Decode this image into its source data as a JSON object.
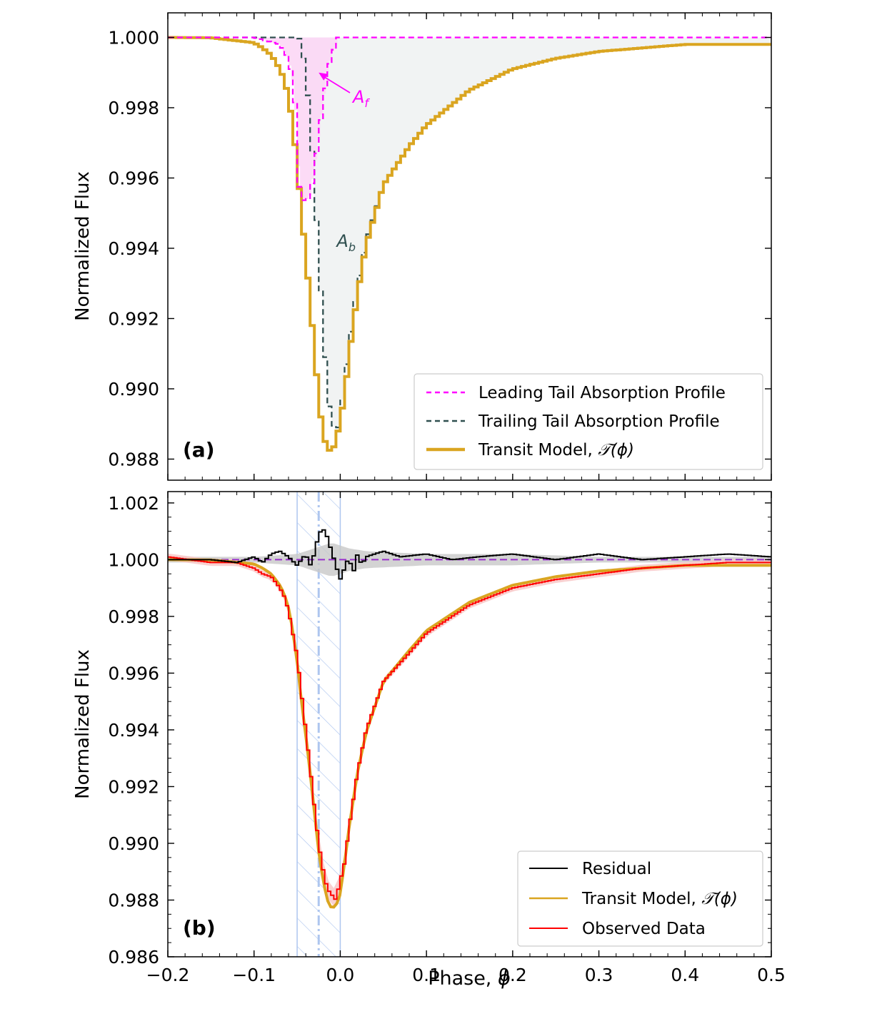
{
  "figure": {
    "x_label": "Phase, ",
    "x_label_symbol": "ϕ"
  },
  "chart_data": [
    {
      "type": "line",
      "panel_label": "(a)",
      "ylabel": "Normalized Flux",
      "xlim": [
        -0.2,
        0.5
      ],
      "ylim": [
        0.9874,
        1.0007
      ],
      "yticks": [
        0.988,
        0.99,
        0.992,
        0.994,
        0.996,
        0.998,
        1.0
      ],
      "ytick_labels": [
        "0.988",
        "0.990",
        "0.992",
        "0.994",
        "0.996",
        "0.998",
        "1.000"
      ],
      "legend_position": "lower-right",
      "annotations": [
        {
          "text": "A",
          "subscript": "f",
          "color": "#ff00ff",
          "points_to": [
            -0.025,
            0.999
          ]
        },
        {
          "text": "A",
          "subscript": "b",
          "color": "#2f4f4f",
          "at": [
            0.0,
            0.9942
          ]
        }
      ],
      "series": [
        {
          "name": "Leading Tail Absorption Profile",
          "style": "dashed",
          "color": "#ff00ff",
          "fill_color": "#fbd5f4",
          "x": [
            -0.2,
            -0.1,
            -0.07,
            -0.06,
            -0.055,
            -0.05,
            -0.047,
            -0.04,
            -0.035,
            -0.03,
            -0.025,
            -0.02,
            -0.015,
            -0.01,
            -0.005,
            -0.003,
            0.0,
            0.5
          ],
          "y": [
            1.0,
            1.0,
            0.9998,
            0.9994,
            0.9988,
            0.9975,
            0.9954,
            0.99535,
            0.9955,
            0.9962,
            0.9972,
            0.9981,
            0.999,
            0.9995,
            0.9998,
            1.0,
            1.0,
            1.0
          ]
        },
        {
          "name": "Trailing Tail Absorption Profile",
          "style": "dashed",
          "color": "#2f4f4f",
          "fill_color": "#f1f3f3",
          "x": [
            -0.2,
            -0.048,
            -0.045,
            -0.04,
            -0.035,
            -0.03,
            -0.025,
            -0.02,
            -0.015,
            -0.01,
            -0.005,
            -0.002,
            0.0,
            0.01,
            0.02,
            0.03,
            0.05,
            0.08,
            0.1,
            0.15,
            0.2,
            0.25,
            0.3,
            0.35,
            0.4,
            0.45,
            0.5
          ],
          "y": [
            1.0,
            1.0,
            0.9998,
            0.999,
            0.9977,
            0.9958,
            0.9938,
            0.9918,
            0.99,
            0.989,
            0.9889,
            0.9889,
            0.9892,
            0.9912,
            0.9929,
            0.9942,
            0.9958,
            0.9969,
            0.9975,
            0.9985,
            0.9991,
            0.9994,
            0.9996,
            0.9997,
            0.9998,
            0.9998,
            0.9998
          ]
        },
        {
          "name": "Transit Model, ",
          "name_symbol": "𝒯(ϕ)",
          "style": "solid",
          "color": "#daa520",
          "x": [
            -0.2,
            -0.15,
            -0.1,
            -0.09,
            -0.08,
            -0.07,
            -0.065,
            -0.06,
            -0.055,
            -0.05,
            -0.045,
            -0.04,
            -0.035,
            -0.03,
            -0.025,
            -0.02,
            -0.015,
            -0.01,
            -0.005,
            0.0,
            0.005,
            0.01,
            0.02,
            0.03,
            0.05,
            0.08,
            0.1,
            0.15,
            0.2,
            0.25,
            0.3,
            0.35,
            0.4,
            0.45,
            0.5
          ],
          "y": [
            1.0,
            0.99999,
            0.99985,
            0.9997,
            0.9995,
            0.9991,
            0.9988,
            0.9983,
            0.9975,
            0.9964,
            0.995,
            0.9938,
            0.9925,
            0.9911,
            0.9897,
            0.9887,
            0.9883,
            0.9882,
            0.9885,
            0.9891,
            0.9898,
            0.9909,
            0.9927,
            0.9941,
            0.9958,
            0.9969,
            0.9975,
            0.9985,
            0.9991,
            0.9994,
            0.9996,
            0.9997,
            0.9998,
            0.9998,
            0.9998
          ]
        }
      ]
    },
    {
      "type": "line",
      "panel_label": "(b)",
      "ylabel": "Normalized Flux",
      "xlim": [
        -0.2,
        0.5
      ],
      "ylim": [
        0.986,
        1.0024
      ],
      "yticks": [
        0.986,
        0.988,
        0.99,
        0.992,
        0.994,
        0.996,
        0.998,
        1.0,
        1.002
      ],
      "ytick_labels": [
        "0.986",
        "0.988",
        "0.990",
        "0.992",
        "0.994",
        "0.996",
        "0.998",
        "1.000",
        "1.002"
      ],
      "xticks": [
        -0.2,
        -0.1,
        0.0,
        0.1,
        0.2,
        0.3,
        0.4,
        0.5
      ],
      "xtick_labels": [
        "−0.2",
        "−0.1",
        "0.0",
        "0.1",
        "0.2",
        "0.3",
        "0.4",
        "0.5"
      ],
      "legend_position": "lower-right",
      "reference_line": {
        "y": 1.0,
        "color": "#9932cc",
        "style": "dashed"
      },
      "hatched_band": {
        "x": [
          -0.05,
          0.0
        ],
        "center": -0.025,
        "color": "#aec6ef"
      },
      "residual_band": {
        "color": "#c8c8c8",
        "x": [
          -0.2,
          -0.1,
          -0.05,
          -0.03,
          -0.02,
          -0.01,
          0.0,
          0.01,
          0.03,
          0.1,
          0.2,
          0.3,
          0.4,
          0.5
        ],
        "halfwidth": [
          0.0001,
          0.0001,
          0.0002,
          0.0004,
          0.0005,
          0.0006,
          0.0005,
          0.0004,
          0.0003,
          0.0002,
          0.0002,
          0.0001,
          0.0001,
          0.0001
        ]
      },
      "series": [
        {
          "name": "Residual",
          "color": "#000000",
          "x": [
            -0.2,
            -0.15,
            -0.12,
            -0.1,
            -0.09,
            -0.08,
            -0.07,
            -0.06,
            -0.05,
            -0.045,
            -0.04,
            -0.035,
            -0.03,
            -0.025,
            -0.02,
            -0.015,
            -0.01,
            -0.005,
            0.0,
            0.005,
            0.01,
            0.015,
            0.02,
            0.025,
            0.03,
            0.04,
            0.05,
            0.07,
            0.1,
            0.13,
            0.16,
            0.2,
            0.25,
            0.3,
            0.35,
            0.4,
            0.45,
            0.5
          ],
          "y": [
            1.0,
            1.0,
            0.9999,
            1.0001,
            0.9999,
            1.0002,
            1.0003,
            1.0001,
            0.9998,
            1.0,
            1.0002,
            0.9998,
            1.0002,
            1.0009,
            1.0011,
            1.0008,
            1.0003,
            0.9998,
            0.9993,
            0.9997,
            1.0001,
            0.9995,
            1.0002,
            0.9998,
            1.0001,
            1.0002,
            1.0003,
            1.0001,
            1.0002,
            1.0,
            1.0001,
            1.0002,
            1.0,
            1.0002,
            1.0,
            1.0001,
            1.0002,
            1.0001
          ]
        },
        {
          "name": "Transit Model, ",
          "name_symbol": "𝒯(ϕ)",
          "color": "#daa520",
          "x": [
            -0.2,
            -0.15,
            -0.1,
            -0.09,
            -0.08,
            -0.07,
            -0.065,
            -0.06,
            -0.055,
            -0.05,
            -0.045,
            -0.04,
            -0.035,
            -0.03,
            -0.025,
            -0.02,
            -0.015,
            -0.01,
            -0.005,
            0.0,
            0.005,
            0.01,
            0.02,
            0.03,
            0.05,
            0.08,
            0.1,
            0.15,
            0.2,
            0.25,
            0.3,
            0.35,
            0.4,
            0.45,
            0.5
          ],
          "y": [
            1.0,
            0.99999,
            0.99985,
            0.9997,
            0.9995,
            0.9991,
            0.9988,
            0.9983,
            0.9975,
            0.9964,
            0.995,
            0.9938,
            0.9925,
            0.9911,
            0.9897,
            0.9887,
            0.988,
            0.9877,
            0.9878,
            0.9882,
            0.9893,
            0.9905,
            0.9925,
            0.9939,
            0.9957,
            0.9968,
            0.9975,
            0.9985,
            0.9991,
            0.9994,
            0.9996,
            0.9997,
            0.9998,
            0.9998,
            0.9998
          ]
        },
        {
          "name": "Observed Data",
          "color": "#ff0000",
          "band_color": "#f7c4c4",
          "x": [
            -0.2,
            -0.15,
            -0.12,
            -0.1,
            -0.09,
            -0.08,
            -0.07,
            -0.065,
            -0.06,
            -0.055,
            -0.05,
            -0.045,
            -0.04,
            -0.035,
            -0.03,
            -0.025,
            -0.02,
            -0.015,
            -0.01,
            -0.005,
            0.0,
            0.005,
            0.01,
            0.02,
            0.03,
            0.05,
            0.08,
            0.1,
            0.15,
            0.2,
            0.25,
            0.3,
            0.35,
            0.4,
            0.45,
            0.5
          ],
          "y": [
            1.0001,
            0.9999,
            0.9999,
            0.9997,
            0.9995,
            0.9994,
            0.999,
            0.9987,
            0.9982,
            0.9974,
            0.9966,
            0.9953,
            0.994,
            0.9927,
            0.9913,
            0.99,
            0.9891,
            0.9884,
            0.9882,
            0.988,
            0.9887,
            0.9893,
            0.9905,
            0.9925,
            0.994,
            0.9957,
            0.9967,
            0.9974,
            0.9984,
            0.999,
            0.9993,
            0.9995,
            0.9997,
            0.9998,
            0.9999,
            0.9999
          ]
        }
      ]
    }
  ]
}
